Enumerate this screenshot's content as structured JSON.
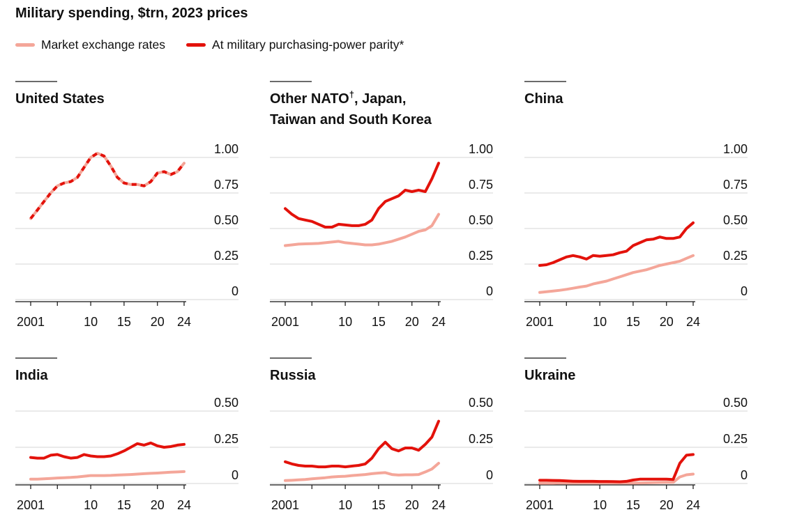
{
  "title": "Military spending, $trn, 2023 prices",
  "legend": {
    "market": {
      "label": "Market exchange rates",
      "color": "#f4a699"
    },
    "ppp": {
      "label": "At military purchasing-power parity*",
      "color": "#e3120b"
    }
  },
  "chart_data": [
    {
      "type": "line",
      "title_lines": [
        "United States"
      ],
      "x": [
        2001,
        2002,
        2003,
        2004,
        2005,
        2006,
        2007,
        2008,
        2009,
        2010,
        2011,
        2012,
        2013,
        2014,
        2015,
        2016,
        2017,
        2018,
        2019,
        2020,
        2021,
        2022,
        2023,
        2024
      ],
      "series": [
        {
          "name": "Market exchange rates",
          "style": "market",
          "values": [
            0.57,
            0.63,
            0.69,
            0.75,
            0.8,
            0.82,
            0.83,
            0.86,
            0.93,
            1.0,
            1.03,
            1.01,
            0.94,
            0.86,
            0.82,
            0.81,
            0.81,
            0.8,
            0.83,
            0.89,
            0.9,
            0.88,
            0.9,
            0.96
          ]
        },
        {
          "name": "At military purchasing-power parity*",
          "style": "ppp-dashed",
          "values": [
            0.57,
            0.63,
            0.69,
            0.75,
            0.8,
            0.82,
            0.83,
            0.86,
            0.93,
            1.0,
            1.03,
            1.01,
            0.94,
            0.86,
            0.82,
            0.81,
            0.81,
            0.8,
            0.83,
            0.89,
            0.9,
            0.88,
            0.9,
            0.96
          ]
        }
      ],
      "ylim": [
        0,
        1.0
      ],
      "yticks": [
        "1.00",
        "0.75",
        "0.50",
        "0.25",
        "0"
      ],
      "ytick_values": [
        1.0,
        0.75,
        0.5,
        0.25,
        0
      ],
      "xtick_labels": [
        "2001",
        "10",
        "15",
        "20",
        "24"
      ],
      "xtick_values": [
        2001,
        2010,
        2015,
        2020,
        2024
      ]
    },
    {
      "type": "line",
      "title_lines": [
        "Other NATO",
        "Taiwan and South Korea"
      ],
      "title_dagger": "†",
      "title_suffix": ", Japan,",
      "x": [
        2001,
        2002,
        2003,
        2004,
        2005,
        2006,
        2007,
        2008,
        2009,
        2010,
        2011,
        2012,
        2013,
        2014,
        2015,
        2016,
        2017,
        2018,
        2019,
        2020,
        2021,
        2022,
        2023,
        2024
      ],
      "series": [
        {
          "name": "Market exchange rates",
          "style": "market",
          "values": [
            0.38,
            0.385,
            0.39,
            0.392,
            0.393,
            0.395,
            0.4,
            0.405,
            0.41,
            0.4,
            0.395,
            0.39,
            0.385,
            0.385,
            0.39,
            0.4,
            0.41,
            0.425,
            0.44,
            0.46,
            0.48,
            0.49,
            0.52,
            0.6
          ]
        },
        {
          "name": "At military purchasing-power parity*",
          "style": "ppp",
          "values": [
            0.64,
            0.6,
            0.57,
            0.56,
            0.55,
            0.53,
            0.51,
            0.51,
            0.53,
            0.525,
            0.52,
            0.52,
            0.53,
            0.56,
            0.64,
            0.69,
            0.71,
            0.73,
            0.77,
            0.76,
            0.77,
            0.76,
            0.85,
            0.96
          ]
        }
      ],
      "ylim": [
        0,
        1.0
      ],
      "yticks": [
        "1.00",
        "0.75",
        "0.50",
        "0.25",
        "0"
      ],
      "ytick_values": [
        1.0,
        0.75,
        0.5,
        0.25,
        0
      ],
      "xtick_labels": [
        "2001",
        "10",
        "15",
        "20",
        "24"
      ],
      "xtick_values": [
        2001,
        2010,
        2015,
        2020,
        2024
      ]
    },
    {
      "type": "line",
      "title_lines": [
        "China"
      ],
      "x": [
        2001,
        2002,
        2003,
        2004,
        2005,
        2006,
        2007,
        2008,
        2009,
        2010,
        2011,
        2012,
        2013,
        2014,
        2015,
        2016,
        2017,
        2018,
        2019,
        2020,
        2021,
        2022,
        2023,
        2024
      ],
      "series": [
        {
          "name": "Market exchange rates",
          "style": "market",
          "values": [
            0.05,
            0.055,
            0.06,
            0.065,
            0.072,
            0.08,
            0.088,
            0.095,
            0.11,
            0.12,
            0.13,
            0.145,
            0.16,
            0.175,
            0.19,
            0.2,
            0.21,
            0.225,
            0.24,
            0.25,
            0.26,
            0.27,
            0.29,
            0.31
          ]
        },
        {
          "name": "At military purchasing-power parity*",
          "style": "ppp",
          "values": [
            0.24,
            0.245,
            0.26,
            0.28,
            0.3,
            0.31,
            0.3,
            0.285,
            0.31,
            0.305,
            0.31,
            0.315,
            0.33,
            0.34,
            0.38,
            0.4,
            0.42,
            0.425,
            0.44,
            0.43,
            0.43,
            0.44,
            0.5,
            0.54
          ]
        }
      ],
      "ylim": [
        0,
        1.0
      ],
      "yticks": [
        "1.00",
        "0.75",
        "0.50",
        "0.25",
        "0"
      ],
      "ytick_values": [
        1.0,
        0.75,
        0.5,
        0.25,
        0
      ],
      "xtick_labels": [
        "2001",
        "10",
        "15",
        "20",
        "24"
      ],
      "xtick_values": [
        2001,
        2010,
        2015,
        2020,
        2024
      ]
    },
    {
      "type": "line",
      "title_lines": [
        "India"
      ],
      "x": [
        2001,
        2002,
        2003,
        2004,
        2005,
        2006,
        2007,
        2008,
        2009,
        2010,
        2011,
        2012,
        2013,
        2014,
        2015,
        2016,
        2017,
        2018,
        2019,
        2020,
        2021,
        2022,
        2023,
        2024
      ],
      "series": [
        {
          "name": "Market exchange rates",
          "style": "market",
          "values": [
            0.03,
            0.03,
            0.032,
            0.035,
            0.038,
            0.04,
            0.042,
            0.045,
            0.05,
            0.055,
            0.055,
            0.055,
            0.056,
            0.058,
            0.06,
            0.062,
            0.065,
            0.068,
            0.07,
            0.072,
            0.075,
            0.078,
            0.08,
            0.082
          ]
        },
        {
          "name": "At military purchasing-power parity*",
          "style": "ppp",
          "values": [
            0.18,
            0.175,
            0.175,
            0.195,
            0.2,
            0.185,
            0.175,
            0.18,
            0.2,
            0.19,
            0.185,
            0.185,
            0.19,
            0.205,
            0.225,
            0.25,
            0.275,
            0.265,
            0.28,
            0.26,
            0.25,
            0.255,
            0.265,
            0.27
          ]
        }
      ],
      "ylim": [
        0,
        0.5
      ],
      "yticks": [
        "0.50",
        "0.25",
        "0"
      ],
      "ytick_values": [
        0.5,
        0.25,
        0
      ],
      "xtick_labels": [
        "2001",
        "10",
        "15",
        "20",
        "24"
      ],
      "xtick_values": [
        2001,
        2010,
        2015,
        2020,
        2024
      ]
    },
    {
      "type": "line",
      "title_lines": [
        "Russia"
      ],
      "x": [
        2001,
        2002,
        2003,
        2004,
        2005,
        2006,
        2007,
        2008,
        2009,
        2010,
        2011,
        2012,
        2013,
        2014,
        2015,
        2016,
        2017,
        2018,
        2019,
        2020,
        2021,
        2022,
        2023,
        2024
      ],
      "series": [
        {
          "name": "Market exchange rates",
          "style": "market",
          "values": [
            0.02,
            0.022,
            0.025,
            0.028,
            0.032,
            0.036,
            0.04,
            0.045,
            0.048,
            0.05,
            0.055,
            0.058,
            0.062,
            0.068,
            0.072,
            0.075,
            0.062,
            0.058,
            0.06,
            0.06,
            0.062,
            0.08,
            0.1,
            0.14
          ]
        },
        {
          "name": "At military purchasing-power parity*",
          "style": "ppp",
          "values": [
            0.15,
            0.135,
            0.125,
            0.12,
            0.12,
            0.115,
            0.115,
            0.12,
            0.12,
            0.115,
            0.12,
            0.125,
            0.135,
            0.175,
            0.24,
            0.285,
            0.24,
            0.225,
            0.245,
            0.245,
            0.23,
            0.27,
            0.32,
            0.43
          ]
        }
      ],
      "ylim": [
        0,
        0.5
      ],
      "yticks": [
        "0.50",
        "0.25",
        "0"
      ],
      "ytick_values": [
        0.5,
        0.25,
        0
      ],
      "xtick_labels": [
        "2001",
        "10",
        "15",
        "20",
        "24"
      ],
      "xtick_values": [
        2001,
        2010,
        2015,
        2020,
        2024
      ]
    },
    {
      "type": "line",
      "title_lines": [
        "Ukraine"
      ],
      "x": [
        2001,
        2002,
        2003,
        2004,
        2005,
        2006,
        2007,
        2008,
        2009,
        2010,
        2011,
        2012,
        2013,
        2014,
        2015,
        2016,
        2017,
        2018,
        2019,
        2020,
        2021,
        2022,
        2023,
        2024
      ],
      "series": [
        {
          "name": "Market exchange rates",
          "style": "market",
          "values": [
            0.002,
            0.002,
            0.002,
            0.003,
            0.003,
            0.003,
            0.004,
            0.005,
            0.004,
            0.004,
            0.004,
            0.004,
            0.004,
            0.004,
            0.003,
            0.004,
            0.005,
            0.006,
            0.007,
            0.008,
            0.008,
            0.045,
            0.06,
            0.065
          ]
        },
        {
          "name": "At military purchasing-power parity*",
          "style": "ppp",
          "values": [
            0.022,
            0.022,
            0.021,
            0.02,
            0.018,
            0.016,
            0.015,
            0.015,
            0.015,
            0.014,
            0.014,
            0.013,
            0.012,
            0.015,
            0.024,
            0.03,
            0.03,
            0.03,
            0.03,
            0.03,
            0.028,
            0.14,
            0.195,
            0.2
          ]
        }
      ],
      "ylim": [
        0,
        0.5
      ],
      "yticks": [
        "0.50",
        "0.25",
        "0"
      ],
      "ytick_values": [
        0.5,
        0.25,
        0
      ],
      "xtick_labels": [
        "2001",
        "10",
        "15",
        "20",
        "24"
      ],
      "xtick_values": [
        2001,
        2010,
        2015,
        2020,
        2024
      ]
    }
  ]
}
